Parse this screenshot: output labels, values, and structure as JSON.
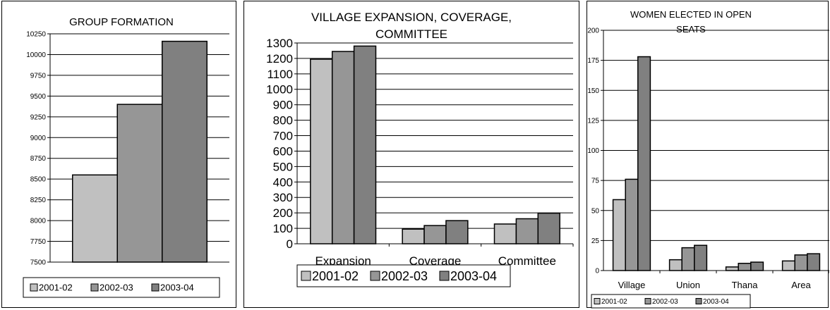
{
  "legend_labels": [
    "2001-02",
    "2002-03",
    "2003-04"
  ],
  "series_colors": [
    "#c0c0c0",
    "#969696",
    "#808080"
  ],
  "chart_data": [
    {
      "type": "bar",
      "title": "GROUP FORMATION",
      "categories": [
        ""
      ],
      "series": [
        {
          "name": "2001-02",
          "values": [
            8550
          ]
        },
        {
          "name": "2002-03",
          "values": [
            9400
          ]
        },
        {
          "name": "2003-04",
          "values": [
            10160
          ]
        }
      ],
      "ylim": [
        7500,
        10250
      ],
      "yticks": [
        "7500",
        "7750",
        "8000",
        "8250",
        "8500",
        "8750",
        "9000",
        "9250",
        "9500",
        "9750",
        "10000",
        "10250"
      ],
      "grid": true,
      "legend": "bottom"
    },
    {
      "type": "bar",
      "title": "VILLAGE EXPANSION, COVERAGE, COMMITTEE",
      "categories": [
        "Expansion",
        "Coverage",
        "Committee"
      ],
      "series": [
        {
          "name": "2001-02",
          "values": [
            1195,
            95,
            128
          ]
        },
        {
          "name": "2002-03",
          "values": [
            1245,
            118,
            162
          ]
        },
        {
          "name": "2003-04",
          "values": [
            1280,
            150,
            198
          ]
        }
      ],
      "ylim": [
        0,
        1300
      ],
      "yticks": [
        "0",
        "100",
        "200",
        "300",
        "400",
        "500",
        "600",
        "700",
        "800",
        "900",
        "1000",
        "1100",
        "1200",
        "1300"
      ],
      "grid": true,
      "legend": "bottom"
    },
    {
      "type": "bar",
      "title": "WOMEN ELECTED IN OPEN SEATS",
      "categories": [
        "Village",
        "Union",
        "Thana",
        "Area"
      ],
      "series": [
        {
          "name": "2001-02",
          "values": [
            59,
            9,
            3,
            8
          ]
        },
        {
          "name": "2002-03",
          "values": [
            76,
            19,
            6,
            13
          ]
        },
        {
          "name": "2003-04",
          "values": [
            178,
            21,
            7,
            14
          ]
        }
      ],
      "ylim": [
        0,
        200
      ],
      "yticks": [
        "0",
        "25",
        "50",
        "75",
        "100",
        "125",
        "150",
        "175",
        "200"
      ],
      "grid": true,
      "legend": "bottom"
    }
  ]
}
